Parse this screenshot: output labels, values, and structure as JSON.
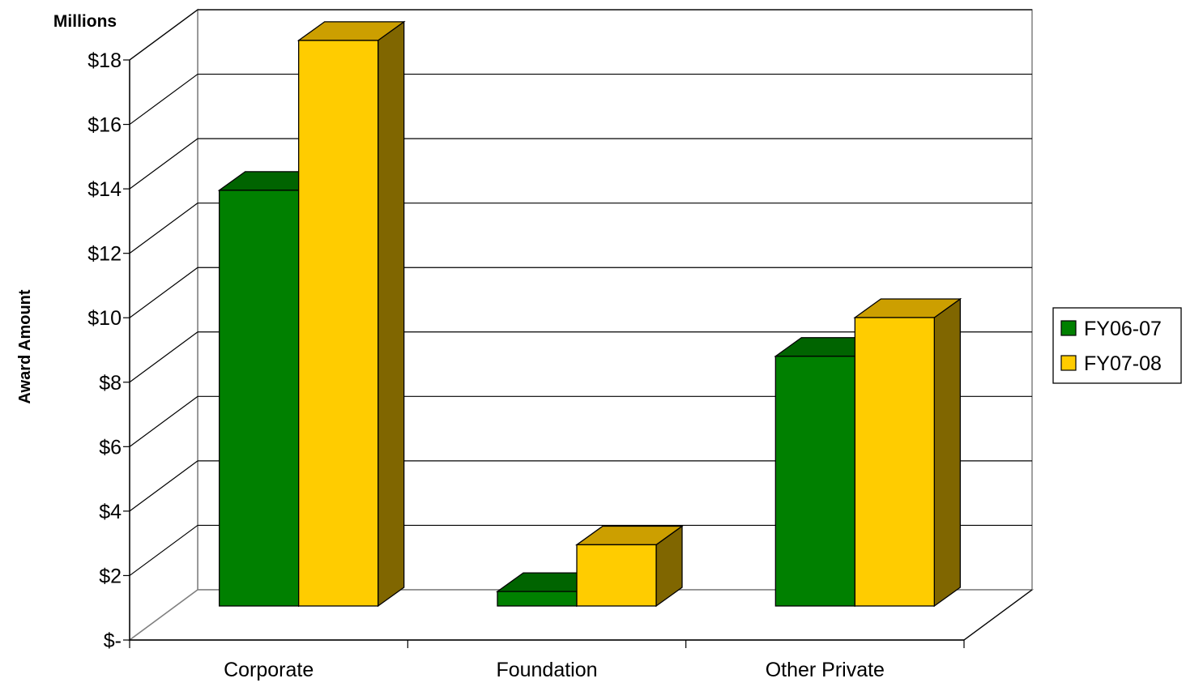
{
  "chart_data": {
    "type": "bar",
    "style": "3d-clustered-column",
    "categories": [
      "Corporate",
      "Foundation",
      "Other Private"
    ],
    "series": [
      {
        "name": "FY06-07",
        "values": [
          12.9,
          0.45,
          7.75
        ],
        "color": "#008000",
        "top_color": "#006400",
        "side_color": "#005000"
      },
      {
        "name": "FY07-08",
        "values": [
          17.55,
          1.9,
          8.95
        ],
        "color": "#FFCC00",
        "top_color": "#CC9F00",
        "side_color": "#806600"
      }
    ],
    "unit_label": "Millions",
    "ylabel": "Award Amount",
    "xlabel": "",
    "ylim": [
      0,
      18
    ],
    "yticks": [
      0,
      2,
      4,
      6,
      8,
      10,
      12,
      14,
      16,
      18
    ],
    "ytick_labels": [
      "$-",
      "$2",
      "$4",
      "$6",
      "$8",
      "$10",
      "$12",
      "$14",
      "$16",
      "$18"
    ],
    "grid": true,
    "legend_position": "right"
  }
}
